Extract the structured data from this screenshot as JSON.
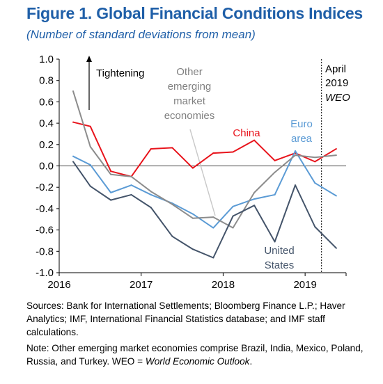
{
  "header": {
    "title": "Figure 1. Global Financial Conditions Indices",
    "subtitle": "(Number of standard deviations from mean)"
  },
  "chart_data": {
    "type": "line",
    "title": "Figure 1. Global Financial Conditions Indices",
    "subtitle": "(Number of standard deviations from mean)",
    "xlabel": "",
    "ylabel": "",
    "xlim": [
      2016.0,
      2019.5
    ],
    "ylim": [
      -1.0,
      1.0
    ],
    "yticks": [
      1.0,
      0.8,
      0.6,
      0.4,
      0.2,
      0.0,
      -0.2,
      -0.4,
      -0.6,
      -0.8,
      -1.0
    ],
    "ytick_labels": [
      "1.0",
      "0.8",
      "0.6",
      "0.4",
      "0.2",
      "0.0",
      "-0.2",
      "-0.4",
      "-0.6",
      "-0.8",
      "-1.0"
    ],
    "xticks": [
      2016,
      2017,
      2018,
      2019
    ],
    "xtick_labels": [
      "2016",
      "2017",
      "2018",
      "2019"
    ],
    "grid": false,
    "x": [
      2016.17,
      2016.38,
      2016.63,
      2016.88,
      2017.12,
      2017.38,
      2017.63,
      2017.88,
      2018.12,
      2018.38,
      2018.63,
      2018.88,
      2019.12,
      2019.38
    ],
    "series": [
      {
        "name": "China",
        "color": "#e8141c",
        "values": [
          0.41,
          0.37,
          -0.05,
          -0.1,
          0.16,
          0.17,
          -0.02,
          0.12,
          0.13,
          0.24,
          0.05,
          0.12,
          0.04,
          0.16
        ]
      },
      {
        "name": "Euro area",
        "color": "#5b9bd5",
        "values": [
          0.09,
          0.01,
          -0.25,
          -0.18,
          -0.27,
          -0.35,
          -0.45,
          -0.58,
          -0.38,
          -0.31,
          -0.27,
          0.14,
          -0.16,
          -0.28
        ]
      },
      {
        "name": "Other emerging market economies",
        "color": "#8c8c8c",
        "values": [
          0.7,
          0.18,
          -0.08,
          -0.1,
          -0.24,
          -0.36,
          -0.49,
          -0.48,
          -0.58,
          -0.25,
          -0.06,
          0.1,
          0.08,
          0.1
        ]
      },
      {
        "name": "United States",
        "color": "#44546a",
        "values": [
          0.04,
          -0.19,
          -0.32,
          -0.27,
          -0.39,
          -0.66,
          -0.78,
          -0.86,
          -0.47,
          -0.37,
          -0.71,
          -0.18,
          -0.57,
          -0.77
        ]
      }
    ],
    "annotations": {
      "tightening": "Tightening",
      "weo_line1": "April",
      "weo_line2": "2019",
      "weo_line3": "WEO",
      "weo_x": 2019.2,
      "label_other_em": [
        "Other",
        "emerging",
        "market",
        "economies"
      ],
      "label_china": "China",
      "label_euro": [
        "Euro",
        "area"
      ],
      "label_us": [
        "United",
        "States"
      ]
    }
  },
  "footer": {
    "sources": "Sources: Bank for International Settlements; Bloomberg Finance L.P.; Haver Analytics; IMF, International Financial Statistics database; and IMF staff calculations.",
    "note_prefix": "Note: Other emerging market economies comprise Brazil, India, Mexico, Poland, Russia, and Turkey. WEO = ",
    "note_italic": "World Economic Outlook",
    "note_suffix": "."
  }
}
